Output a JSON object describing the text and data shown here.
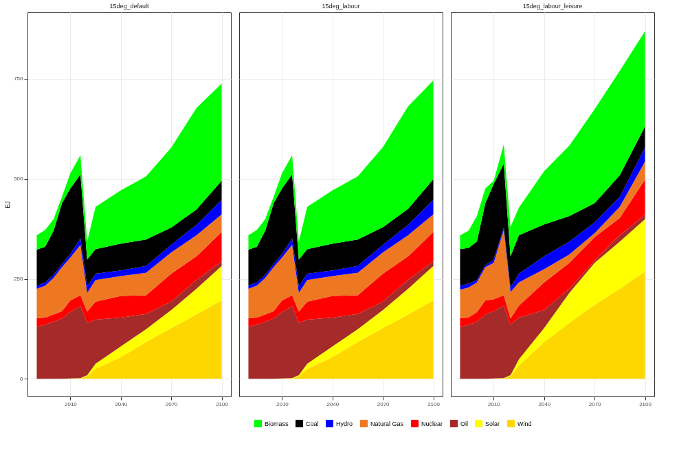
{
  "chart_data": [
    {
      "type": "area",
      "title": "15deg_default",
      "ylabel": "EJ",
      "stacked": true,
      "grid": true,
      "legend": "bottom",
      "x": [
        1990,
        1995,
        2000,
        2005,
        2010,
        2016,
        2020,
        2025,
        2040,
        2055,
        2070,
        2085,
        2100
      ],
      "xlim": [
        1984.5,
        2105.5
      ],
      "xticks": [
        2010,
        2040,
        2070,
        2100
      ],
      "ylim": [
        -44,
        916
      ],
      "yticks": [
        0,
        250,
        500,
        750
      ],
      "series": [
        {
          "name": "Wind",
          "color": "#ffd700",
          "values": [
            0,
            0,
            0,
            0,
            0,
            1,
            6,
            25,
            54,
            92,
            127,
            161,
            196
          ]
        },
        {
          "name": "Solar",
          "color": "#ffff00",
          "values": [
            0,
            0,
            0,
            0,
            1,
            1,
            3,
            13,
            27,
            32,
            45,
            64,
            86
          ]
        },
        {
          "name": "Oil",
          "color": "#a52a2a",
          "values": [
            130,
            135,
            143,
            151,
            166,
            180,
            131,
            110,
            72,
            38,
            21,
            22,
            12
          ]
        },
        {
          "name": "Nuclear",
          "color": "#ff0000",
          "values": [
            22,
            18,
            18,
            18,
            29,
            27,
            28,
            45,
            54,
            47,
            70,
            59,
            73
          ]
        },
        {
          "name": "Natural Gas",
          "color": "#ee7722",
          "values": [
            73,
            80,
            91,
            110,
            107,
            126,
            47,
            54,
            50,
            56,
            53,
            53,
            44
          ]
        },
        {
          "name": "Hydro",
          "color": "#0000ff",
          "values": [
            8,
            8,
            8,
            8,
            9,
            16,
            16,
            16,
            14,
            17,
            19,
            26,
            36
          ]
        },
        {
          "name": "Coal",
          "color": "#000000",
          "values": [
            90,
            89,
            110,
            152,
            164,
            160,
            67,
            61,
            67,
            66,
            43,
            38,
            48
          ]
        },
        {
          "name": "Biomass",
          "color": "#00ff00",
          "values": [
            36,
            42,
            29,
            16,
            38,
            48,
            45,
            106,
            133,
            158,
            200,
            254,
            243
          ]
        }
      ]
    },
    {
      "type": "area",
      "title": "15deg_labour",
      "stacked": true,
      "grid": true,
      "tick_labels": "x",
      "x": [
        1990,
        1995,
        2000,
        2005,
        2010,
        2016,
        2020,
        2025,
        2040,
        2055,
        2070,
        2085,
        2100
      ],
      "xlim": [
        1984.5,
        2105.5
      ],
      "xticks": [
        2010,
        2040,
        2070,
        2100
      ],
      "ylim": [
        -44,
        916
      ],
      "yticks": [
        0,
        250,
        500,
        750
      ],
      "series": [
        {
          "name": "Wind",
          "color": "#ffd700",
          "values": [
            0,
            0,
            0,
            0,
            0,
            1,
            6,
            25,
            54,
            92,
            127,
            161,
            196
          ]
        },
        {
          "name": "Solar",
          "color": "#ffff00",
          "values": [
            0,
            0,
            0,
            0,
            1,
            1,
            3,
            13,
            27,
            32,
            45,
            64,
            86
          ]
        },
        {
          "name": "Oil",
          "color": "#a52a2a",
          "values": [
            130,
            135,
            143,
            151,
            166,
            180,
            131,
            110,
            72,
            38,
            21,
            22,
            12
          ]
        },
        {
          "name": "Nuclear",
          "color": "#ff0000",
          "values": [
            22,
            18,
            18,
            18,
            29,
            27,
            28,
            45,
            54,
            47,
            70,
            59,
            73
          ]
        },
        {
          "name": "Natural Gas",
          "color": "#ee7722",
          "values": [
            73,
            80,
            91,
            110,
            107,
            126,
            47,
            54,
            50,
            56,
            53,
            53,
            44
          ]
        },
        {
          "name": "Hydro",
          "color": "#0000ff",
          "values": [
            8,
            8,
            8,
            8,
            9,
            16,
            16,
            16,
            14,
            17,
            19,
            26,
            36
          ]
        },
        {
          "name": "Coal",
          "color": "#000000",
          "values": [
            90,
            89,
            110,
            152,
            164,
            160,
            67,
            61,
            67,
            66,
            44,
            40,
            52
          ]
        },
        {
          "name": "Biomass",
          "color": "#00ff00",
          "values": [
            36,
            42,
            29,
            16,
            38,
            48,
            45,
            106,
            133,
            158,
            200,
            256,
            247
          ]
        }
      ]
    },
    {
      "type": "area",
      "title": "15deg_labour_leisure",
      "stacked": true,
      "grid": true,
      "tick_labels": "x",
      "x": [
        1990,
        1995,
        2000,
        2005,
        2010,
        2016,
        2020,
        2025,
        2040,
        2055,
        2070,
        2085,
        2100
      ],
      "xlim": [
        1984.5,
        2105.5
      ],
      "xticks": [
        2010,
        2040,
        2070,
        2100
      ],
      "ylim": [
        -44,
        916
      ],
      "yticks": [
        0,
        250,
        500,
        750
      ],
      "series": [
        {
          "name": "Wind",
          "color": "#ffd700",
          "values": [
            0,
            0,
            0,
            0,
            0,
            1,
            6,
            33,
            92,
            140,
            185,
            225,
            268
          ]
        },
        {
          "name": "Solar",
          "color": "#ffff00",
          "values": [
            0,
            0,
            0,
            0,
            1,
            1,
            3,
            16,
            35,
            75,
            105,
            118,
            131
          ]
        },
        {
          "name": "Oil",
          "color": "#a52a2a",
          "values": [
            129,
            135,
            143,
            161,
            168,
            181,
            126,
            104,
            45,
            10,
            5,
            16,
            11
          ]
        },
        {
          "name": "Nuclear",
          "color": "#ff0000",
          "values": [
            23,
            18,
            24,
            35,
            30,
            26,
            16,
            30,
            69,
            65,
            59,
            43,
            88
          ]
        },
        {
          "name": "Natural Gas",
          "color": "#ee7722",
          "values": [
            71,
            75,
            74,
            83,
            91,
            163,
            66,
            58,
            33,
            21,
            10,
            28,
            45
          ]
        },
        {
          "name": "Hydro",
          "color": "#0000ff",
          "values": [
            10,
            10,
            6,
            5,
            8,
            6,
            11,
            22,
            32,
            32,
            27,
            25,
            35
          ]
        },
        {
          "name": "Coal",
          "color": "#000000",
          "values": [
            91,
            89,
            96,
            155,
            189,
            160,
            78,
            96,
            80,
            64,
            48,
            54,
            53
          ]
        },
        {
          "name": "Biomass",
          "color": "#00ff00",
          "values": [
            35,
            43,
            64,
            37,
            8,
            48,
            74,
            69,
            133,
            176,
            235,
            261,
            238
          ]
        }
      ]
    }
  ]
}
